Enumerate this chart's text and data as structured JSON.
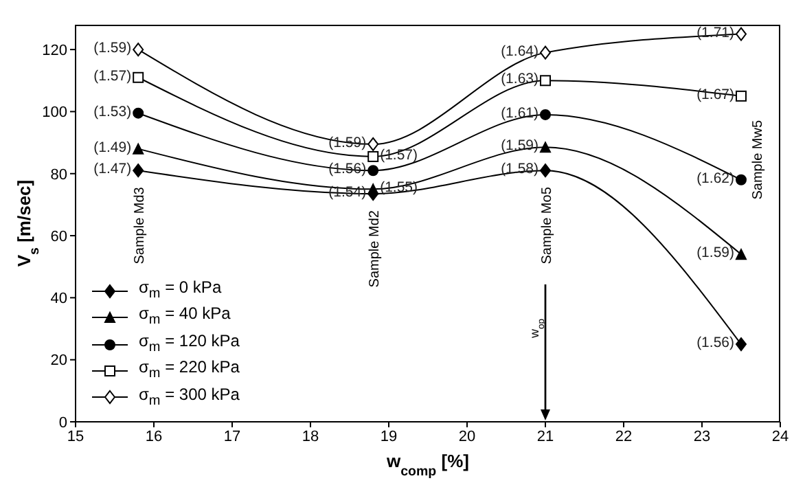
{
  "chart_data": {
    "type": "line",
    "xlabel": "w$_{comp}$ [%]",
    "ylabel": "V$_{s}$ [m/sec]",
    "x": [
      15.8,
      18.8,
      21,
      23.5
    ],
    "xlim": [
      15,
      24
    ],
    "xticks": [
      15,
      16,
      17,
      18,
      19,
      20,
      21,
      22,
      23,
      24
    ],
    "ylim": [
      0,
      128
    ],
    "yticks": [
      0,
      20,
      40,
      60,
      80,
      100,
      120
    ],
    "grid": false,
    "legend": "bottom left",
    "series": [
      {
        "name": "σ$_{m}$ = 0 kPa",
        "color": "#000000",
        "marker": "diamond",
        "values": [
          81,
          73.5,
          81,
          25
        ]
      },
      {
        "name": "σ$_{m}$ = 40 kPa",
        "color": "#000000",
        "marker": "triangle",
        "values": [
          88,
          75,
          88.5,
          54
        ]
      },
      {
        "name": "σ$_{m}$ = 120 kPa",
        "color": "#000000",
        "marker": "circle",
        "values": [
          99.5,
          81,
          99,
          78
        ]
      },
      {
        "name": "σ$_{m}$ = 220 kPa",
        "color": "#000000",
        "marker": "square",
        "values": [
          111,
          85.5,
          110,
          105
        ]
      },
      {
        "name": "σ$_{m}$ = 300 kPa",
        "color": "#000000",
        "marker": "diamond",
        "values": [
          120,
          89.5,
          119,
          125
        ]
      }
    ],
    "annotations": [
      "Sample Md3",
      "Sample Md2",
      "Sample Mo5",
      "Sample Mw5",
      {
        "text": "(1.59)",
        "x": 15.8,
        "y": 120
      },
      {
        "text": "(1.57)",
        "x": 15.8,
        "y": 111
      },
      {
        "text": "(1.53)",
        "x": 15.8,
        "y": 99.5
      },
      {
        "text": "(1.49)",
        "x": 15.8,
        "y": 88
      },
      {
        "text": "(1.47)",
        "x": 15.8,
        "y": 81
      },
      {
        "text": "(1.59)",
        "x": 18.8,
        "y": 89.5
      },
      {
        "text": "(1.57)",
        "x": 18.8,
        "y": 85.5
      },
      {
        "text": "(1.56)",
        "x": 18.8,
        "y": 81
      },
      {
        "text": "(1.55)",
        "x": 18.8,
        "y": 75
      },
      {
        "text": "(1.54)",
        "x": 18.8,
        "y": 73.5
      },
      {
        "text": "(1.64)",
        "x": 21,
        "y": 119
      },
      {
        "text": "(1.63)",
        "x": 21,
        "y": 110
      },
      {
        "text": "(1.61)",
        "x": 21,
        "y": 99
      },
      {
        "text": "(1.59)",
        "x": 21,
        "y": 88.5
      },
      {
        "text": "(1.58)",
        "x": 21,
        "y": 81
      },
      {
        "text": "(1.71)",
        "x": 23.5,
        "y": 125
      },
      {
        "text": "(1.67)",
        "x": 23.5,
        "y": 105
      },
      {
        "text": "(1.62)",
        "x": 23.5,
        "y": 78
      },
      {
        "text": "(1.59)",
        "x": 23.5,
        "y": 54
      },
      {
        "text": "(1.56)",
        "x": 23.5,
        "y": 25
      }
    ],
    "ref_lines": [
      {
        "axis": "x",
        "value": 21,
        "label": "w$_{op}$"
      }
    ]
  }
}
